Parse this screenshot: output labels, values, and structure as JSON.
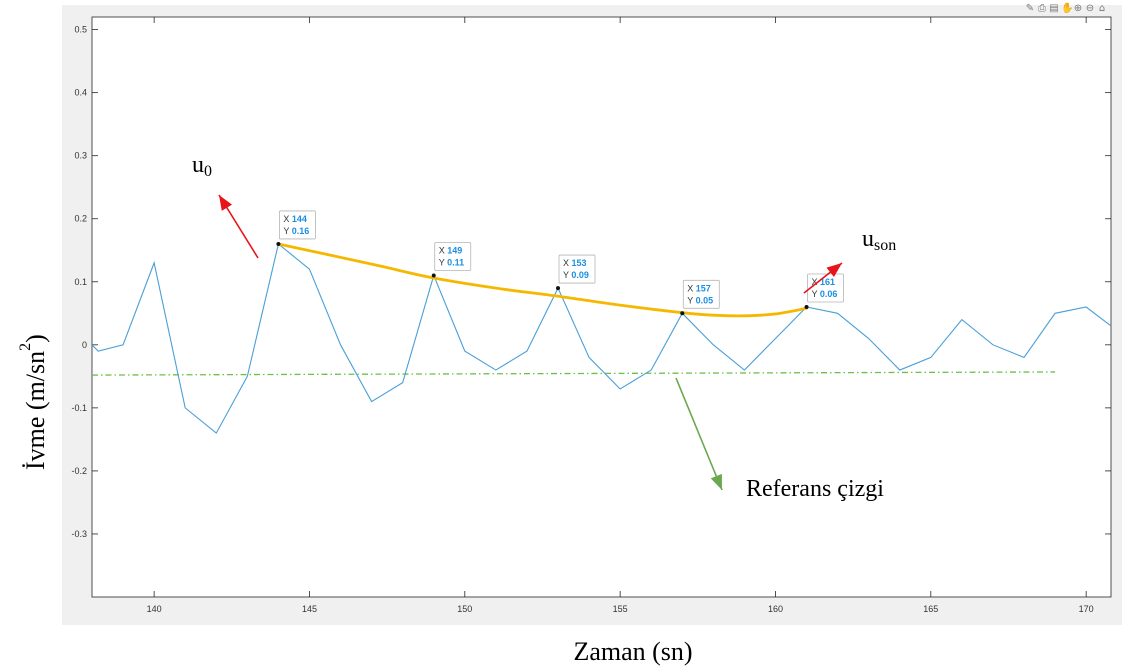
{
  "toolbar": {
    "icons": [
      "brush-icon",
      "save-icon",
      "datatip-icon",
      "pan-icon",
      "zoom-in-icon",
      "zoom-out-icon",
      "home-icon"
    ],
    "glyphs": [
      "✎",
      "⎙",
      "▤",
      "✋",
      "⊕",
      "⊖",
      "⌂"
    ]
  },
  "chart_data": {
    "type": "line",
    "xlabel": "Zaman (sn)",
    "ylabel": "İvme (m/sn",
    "ylabel_exp": "2",
    "ylabel_close": ")",
    "xlim": [
      138,
      170.8
    ],
    "ylim": [
      -0.4,
      0.52
    ],
    "xticks": [
      140,
      145,
      150,
      155,
      160,
      165,
      170
    ],
    "xtick_labels": [
      "140",
      "145",
      "150",
      "155",
      "160",
      "165",
      "170"
    ],
    "yticks": [
      0.5,
      0.4,
      0.3,
      0.2,
      0.1,
      0,
      -0.1,
      -0.2,
      -0.3
    ],
    "ytick_labels": [
      "0.5",
      "0.4",
      "0.3",
      "0.2",
      "0.1",
      "0",
      "-0.1",
      "-0.2",
      "-0.3"
    ],
    "grid": false,
    "series": [
      {
        "color": "#4a9fd8",
        "x": [
          138,
          138.2,
          139,
          140,
          141,
          142,
          143,
          144,
          145,
          146,
          147,
          148,
          149,
          150,
          151,
          152,
          153,
          154,
          155,
          156,
          157,
          158,
          159,
          160,
          161,
          162,
          163,
          164,
          165,
          166,
          167,
          168,
          169,
          170,
          170.8
        ],
        "y": [
          0,
          -0.01,
          0,
          0.13,
          -0.1,
          -0.14,
          -0.05,
          0.16,
          0.12,
          0,
          -0.09,
          -0.06,
          0.11,
          -0.01,
          -0.04,
          -0.01,
          0.09,
          -0.02,
          -0.07,
          -0.04,
          0.05,
          0,
          -0.04,
          0.01,
          0.06,
          0.05,
          0.01,
          -0.04,
          -0.02,
          0.04,
          0,
          -0.02,
          0.05,
          0.06,
          0.03
        ]
      }
    ],
    "fit_curve": {
      "color": "#f5b800",
      "x": [
        144,
        147,
        149,
        151,
        153,
        155,
        157,
        158,
        159,
        160,
        161
      ],
      "y": [
        0.16,
        0.128,
        0.106,
        0.09,
        0.077,
        0.063,
        0.051,
        0.047,
        0.046,
        0.049,
        0.058
      ]
    },
    "reference_line": {
      "color": "#6cc04a",
      "x": [
        138,
        169
      ],
      "y": [
        -0.048,
        -0.043
      ]
    },
    "datatips": [
      {
        "x": 144,
        "y": 0.16,
        "x_label": "X",
        "x_value": "144",
        "y_label": "Y",
        "y_value": "0.16"
      },
      {
        "x": 149,
        "y": 0.11,
        "x_label": "X",
        "x_value": "149",
        "y_label": "Y",
        "y_value": "0.11"
      },
      {
        "x": 153,
        "y": 0.09,
        "x_label": "X",
        "x_value": "153",
        "y_label": "Y",
        "y_value": "0.09"
      },
      {
        "x": 157,
        "y": 0.05,
        "x_label": "X",
        "x_value": "157",
        "y_label": "Y",
        "y_value": "0.05"
      },
      {
        "x": 161,
        "y": 0.06,
        "x_label": "X",
        "x_value": "161",
        "y_label": "Y",
        "y_value": "0.06"
      }
    ],
    "annotations": {
      "u0_base": "u",
      "u0_sub": "0",
      "uson_base": "u",
      "uson_sub": "son",
      "reference": "Referans çizgi",
      "u0_arrow_color": "#e8141b",
      "uson_arrow_color": "#e8141b",
      "reference_arrow_color": "#6aa84f"
    }
  }
}
